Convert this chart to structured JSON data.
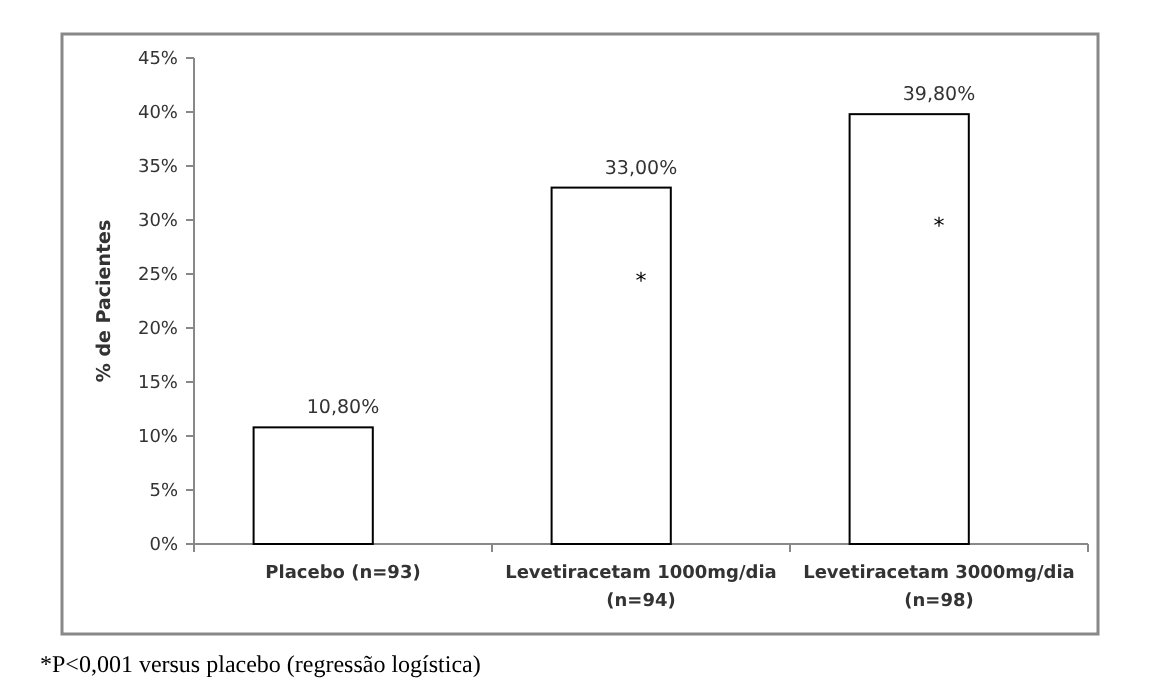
{
  "chart_data": {
    "type": "bar",
    "ylabel": "% de Pacientes",
    "categories": [
      "Placebo (n=93)",
      "Levetiracetam 1000mg/dia (n=94)",
      "Levetiracetam 3000mg/dia (n=98)"
    ],
    "values": [
      10.8,
      33.0,
      39.8
    ],
    "color": "#ffffff",
    "value_labels": [
      "10,80%",
      "33,00%",
      "39,80%"
    ],
    "ylim": [
      0,
      45
    ],
    "yticks": [
      {
        "value": 0,
        "label": "0%"
      },
      {
        "value": 5,
        "label": "5%"
      },
      {
        "value": 10,
        "label": "10%"
      },
      {
        "value": 15,
        "label": "15%"
      },
      {
        "value": 20,
        "label": "20%"
      },
      {
        "value": 25,
        "label": "25%"
      },
      {
        "value": 30,
        "label": "30%"
      },
      {
        "value": 35,
        "label": "35%"
      },
      {
        "value": 40,
        "label": "40%"
      },
      {
        "value": 45,
        "label": "45%"
      }
    ],
    "grid": false,
    "annotations": [
      "*",
      "*",
      "*P<0,001 versus placebo (regressão logística)"
    ]
  }
}
